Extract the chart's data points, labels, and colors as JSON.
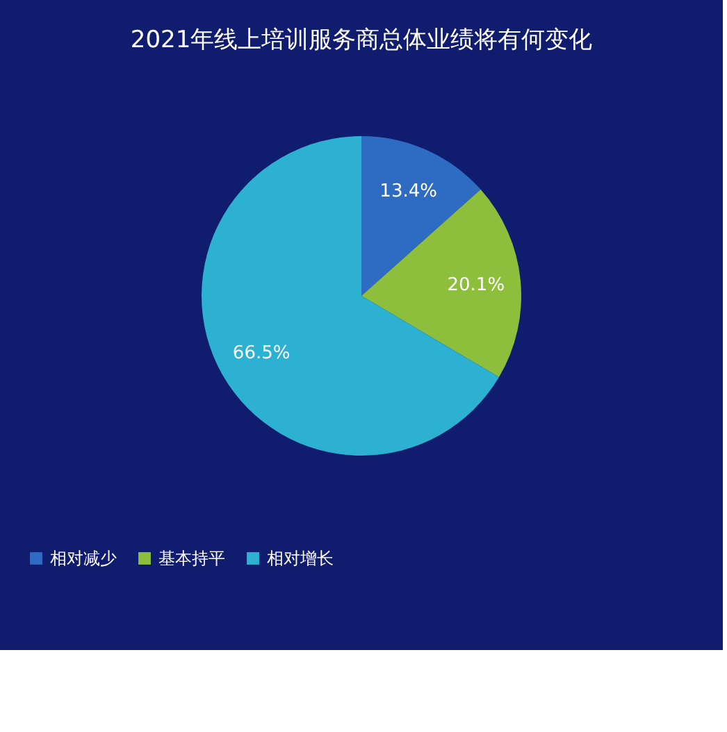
{
  "chart_data": {
    "type": "pie",
    "title": "2021年线上培训服务商总体业绩将有何变化",
    "categories": [
      "相对减少",
      "基本持平",
      "相对增长"
    ],
    "values": [
      13.4,
      20.1,
      66.5
    ],
    "colors": [
      "#2e6cc4",
      "#8dbe3c",
      "#2cb1d3"
    ],
    "value_labels": [
      "13.4%",
      "20.1%",
      "66.5%"
    ],
    "legend": "bottom"
  }
}
